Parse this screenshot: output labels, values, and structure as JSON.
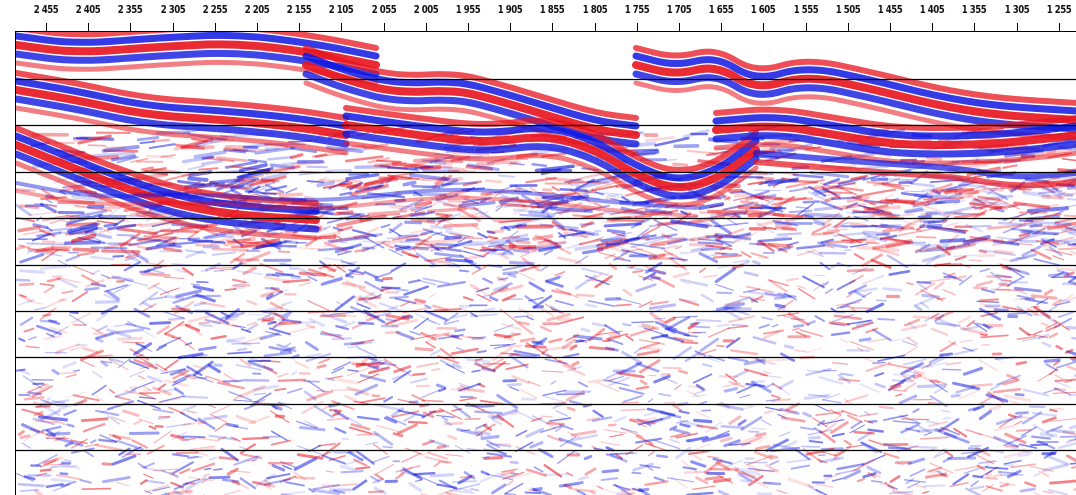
{
  "axis": {
    "ticks": [
      "2 455",
      "2 405",
      "2 355",
      "2 305",
      "2 255",
      "2 205",
      "2 155",
      "2 105",
      "2 055",
      "2 005",
      "1 955",
      "1 905",
      "1 855",
      "1 805",
      "1 755",
      "1 705",
      "1 655",
      "1 605",
      "1 555",
      "1 505",
      "1 455",
      "1 405",
      "1 355",
      "1 305",
      "1 255"
    ]
  },
  "section": {
    "positive_color": "#e8141e",
    "negative_color": "#1018e0",
    "background_color": "#ffffff",
    "timing_line_color": "#000000",
    "timing_line_count": 9
  }
}
